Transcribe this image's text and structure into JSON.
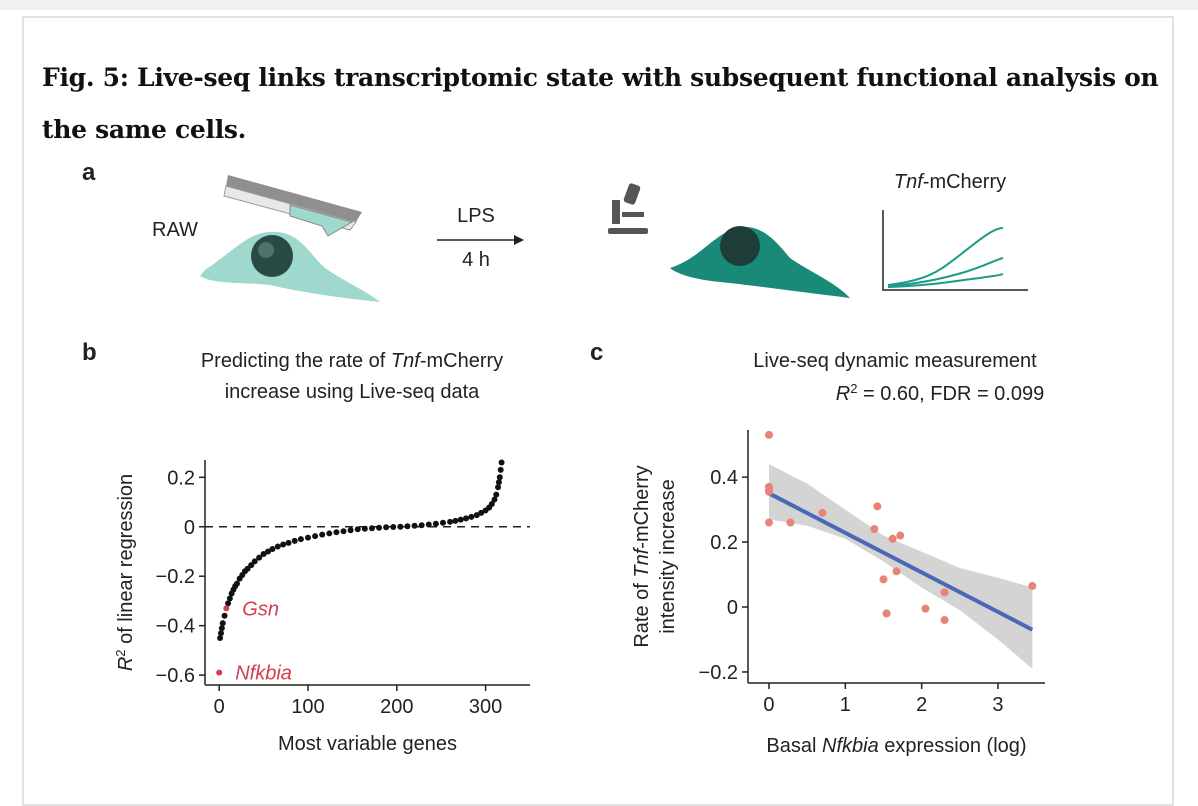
{
  "header": {
    "title": "Fig. 5: Live-seq links transcriptomic state with subsequent functional analysis on the same cells."
  },
  "panel_a": {
    "label": "a",
    "cell_line": "RAW",
    "treatment": "LPS",
    "duration": "4 h",
    "readout": [
      {
        "text": "Tnf",
        "italic": true
      },
      {
        "text": "-mCherry"
      }
    ]
  },
  "chart_data": [
    {
      "type": "scatter",
      "label": "b",
      "title": [
        [
          {
            "text": "Predicting the rate of "
          },
          {
            "text": "Tnf",
            "italic": true
          },
          {
            "text": "-mCherry"
          }
        ],
        [
          {
            "text": "increase using Live-seq data"
          }
        ]
      ],
      "xlabel": [
        [
          {
            "text": "Most variable genes"
          }
        ]
      ],
      "ylabel": [
        [
          {
            "text": "R",
            "italic": true
          },
          {
            "text": "2",
            "sup": true
          },
          {
            "text": " of linear regression"
          }
        ]
      ],
      "xlim": [
        -16,
        350
      ],
      "xticks": [
        0,
        100,
        200,
        300
      ],
      "ylim": [
        -0.64,
        0.27
      ],
      "yticks": [
        {
          "value": -0.6,
          "label": "−0.6"
        },
        {
          "value": -0.4,
          "label": "−0.4"
        },
        {
          "value": -0.2,
          "label": "−0.2"
        },
        0,
        0.2
      ],
      "hline": 0,
      "series": [
        {
          "color": "#111111",
          "x": [
            1,
            2,
            3,
            4,
            6,
            10,
            12,
            14,
            16,
            18,
            20,
            23,
            26,
            29,
            32,
            36,
            40,
            45,
            50,
            55,
            60,
            66,
            72,
            78,
            85,
            92,
            100,
            108,
            116,
            124,
            132,
            140,
            148,
            156,
            164,
            172,
            180,
            188,
            196,
            204,
            212,
            220,
            228,
            236,
            244,
            252,
            260,
            266,
            272,
            278,
            284,
            290,
            295,
            300,
            304,
            307,
            310,
            312,
            314,
            315,
            316,
            317,
            318
          ],
          "values": [
            -0.45,
            -0.43,
            -0.41,
            -0.39,
            -0.36,
            -0.31,
            -0.29,
            -0.27,
            -0.255,
            -0.24,
            -0.23,
            -0.21,
            -0.195,
            -0.18,
            -0.17,
            -0.155,
            -0.14,
            -0.125,
            -0.11,
            -0.1,
            -0.09,
            -0.08,
            -0.072,
            -0.065,
            -0.057,
            -0.05,
            -0.044,
            -0.038,
            -0.032,
            -0.027,
            -0.022,
            -0.018,
            -0.014,
            -0.01,
            -0.008,
            -0.006,
            -0.004,
            -0.002,
            -0.001,
            0,
            0.002,
            0.004,
            0.006,
            0.009,
            0.012,
            0.016,
            0.02,
            0.024,
            0.029,
            0.034,
            0.04,
            0.047,
            0.056,
            0.066,
            0.078,
            0.092,
            0.11,
            0.13,
            0.16,
            0.18,
            0.2,
            0.23,
            0.26
          ]
        },
        {
          "color": "#d0404a",
          "x": [
            0,
            8
          ],
          "values": [
            -0.59,
            -0.33
          ],
          "annotations": [
            "Nfkbia",
            "Gsn"
          ]
        }
      ]
    },
    {
      "type": "scatter",
      "label": "c",
      "title": [
        [
          {
            "text": "Live-seq dynamic measurement"
          }
        ],
        [
          {
            "text": "R",
            "italic": true
          },
          {
            "text": "2",
            "sup": true
          },
          {
            "text": " = 0.60,  FDR = 0.099"
          }
        ]
      ],
      "xlabel": [
        [
          {
            "text": "Basal "
          },
          {
            "text": "Nfkbia",
            "italic": true
          },
          {
            "text": " expression (log)"
          }
        ]
      ],
      "ylabel": [
        [
          {
            "text": "Rate of "
          },
          {
            "text": "Tnf",
            "italic": true
          },
          {
            "text": "-mCherry"
          }
        ],
        [
          {
            "text": "intensity increase"
          }
        ]
      ],
      "xlim": [
        -0.275,
        3.616
      ],
      "xticks": [
        0,
        1,
        2,
        3
      ],
      "ylim": [
        -0.234,
        0.545
      ],
      "yticks": [
        {
          "value": -0.2,
          "label": "−0.2"
        },
        0,
        0.2,
        0.4
      ],
      "band": {
        "color": "#d4d4d4",
        "x": [
          0,
          0.5,
          1,
          1.5,
          2,
          2.5,
          3,
          3.45
        ],
        "lower": [
          0.27,
          0.25,
          0.21,
          0.14,
          0.06,
          -0.01,
          -0.1,
          -0.19
        ],
        "upper": [
          0.44,
          0.38,
          0.3,
          0.22,
          0.17,
          0.12,
          0.09,
          0.06
        ]
      },
      "fit": {
        "color": "#4a68b5",
        "x": [
          0,
          3.45
        ],
        "values": [
          0.35,
          -0.07
        ]
      },
      "series": [
        {
          "color": "#e8837a",
          "x": [
            0,
            0,
            0,
            0,
            0,
            0.28,
            0.7,
            1.38,
            1.42,
            1.62,
            1.72,
            1.67,
            1.5,
            1.54,
            2.05,
            2.3,
            2.3,
            3.45
          ],
          "values": [
            0.53,
            0.37,
            0.36,
            0.355,
            0.26,
            0.26,
            0.29,
            0.24,
            0.31,
            0.21,
            0.22,
            0.11,
            0.085,
            -0.02,
            -0.005,
            0.045,
            -0.04,
            0.065
          ]
        }
      ]
    }
  ]
}
